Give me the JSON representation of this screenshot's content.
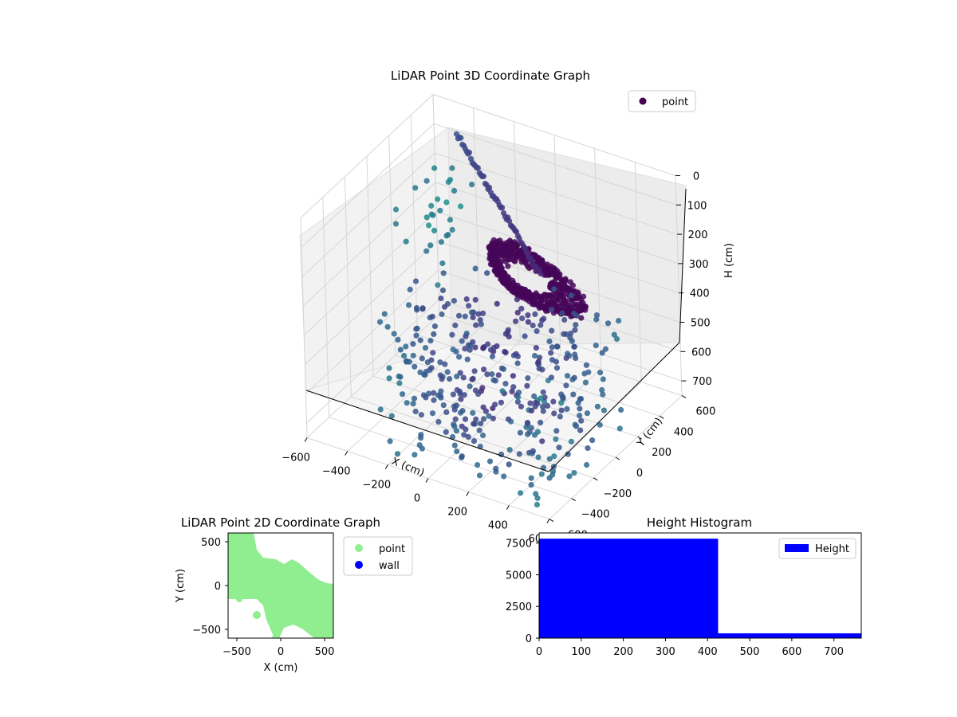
{
  "chart_data": [
    {
      "type": "scatter",
      "title": "LiDAR Point 3D Coordinate Graph",
      "projection": "3d",
      "xlabel": "X (cm)",
      "ylabel": "Y (cm)",
      "zlabel": "H (cm)",
      "xlim": [
        -600,
        600
      ],
      "ylim": [
        -600,
        600
      ],
      "zlim": [
        0,
        750
      ],
      "z_inverted": true,
      "x_ticks": [
        -600,
        -400,
        -200,
        0,
        200,
        400,
        600
      ],
      "y_ticks": [
        -600,
        -400,
        -200,
        0,
        200,
        400,
        600
      ],
      "z_ticks": [
        0,
        100,
        200,
        300,
        400,
        500,
        600,
        700
      ],
      "grid": true,
      "legend": {
        "position": "top-right",
        "entries": [
          {
            "label": "point",
            "color": "#440154"
          }
        ]
      },
      "colormap": "viridis"
    },
    {
      "type": "scatter",
      "title": "LiDAR Point 2D Coordinate Graph",
      "xlabel": "X (cm)",
      "ylabel": "Y (cm)",
      "xlim": [
        -600,
        600
      ],
      "ylim": [
        -600,
        600
      ],
      "x_ticks": [
        -500,
        0,
        500
      ],
      "y_ticks": [
        -500,
        0,
        500
      ],
      "series": [
        {
          "name": "point",
          "color": "#90ee90"
        },
        {
          "name": "wall",
          "color": "#0000ff"
        }
      ],
      "legend": {
        "position": "outside-right",
        "entries": [
          {
            "label": "point",
            "color": "#90ee90"
          },
          {
            "label": "wall",
            "color": "#0000ff"
          }
        ]
      }
    },
    {
      "type": "bar",
      "title": "Height Histogram",
      "xlim": [
        0,
        765
      ],
      "ylim": [
        0,
        8300
      ],
      "x_ticks": [
        0,
        100,
        200,
        300,
        400,
        500,
        600,
        700
      ],
      "y_ticks": [
        0,
        2500,
        5000,
        7500
      ],
      "bins": [
        {
          "from": 0,
          "to": 425,
          "count": 7850
        },
        {
          "from": 425,
          "to": 765,
          "count": 380
        }
      ],
      "series": [
        {
          "name": "Height",
          "color": "#0000ff"
        }
      ],
      "legend": {
        "position": "top-right",
        "entries": [
          {
            "label": "Height",
            "color": "#0000ff"
          }
        ]
      }
    }
  ]
}
